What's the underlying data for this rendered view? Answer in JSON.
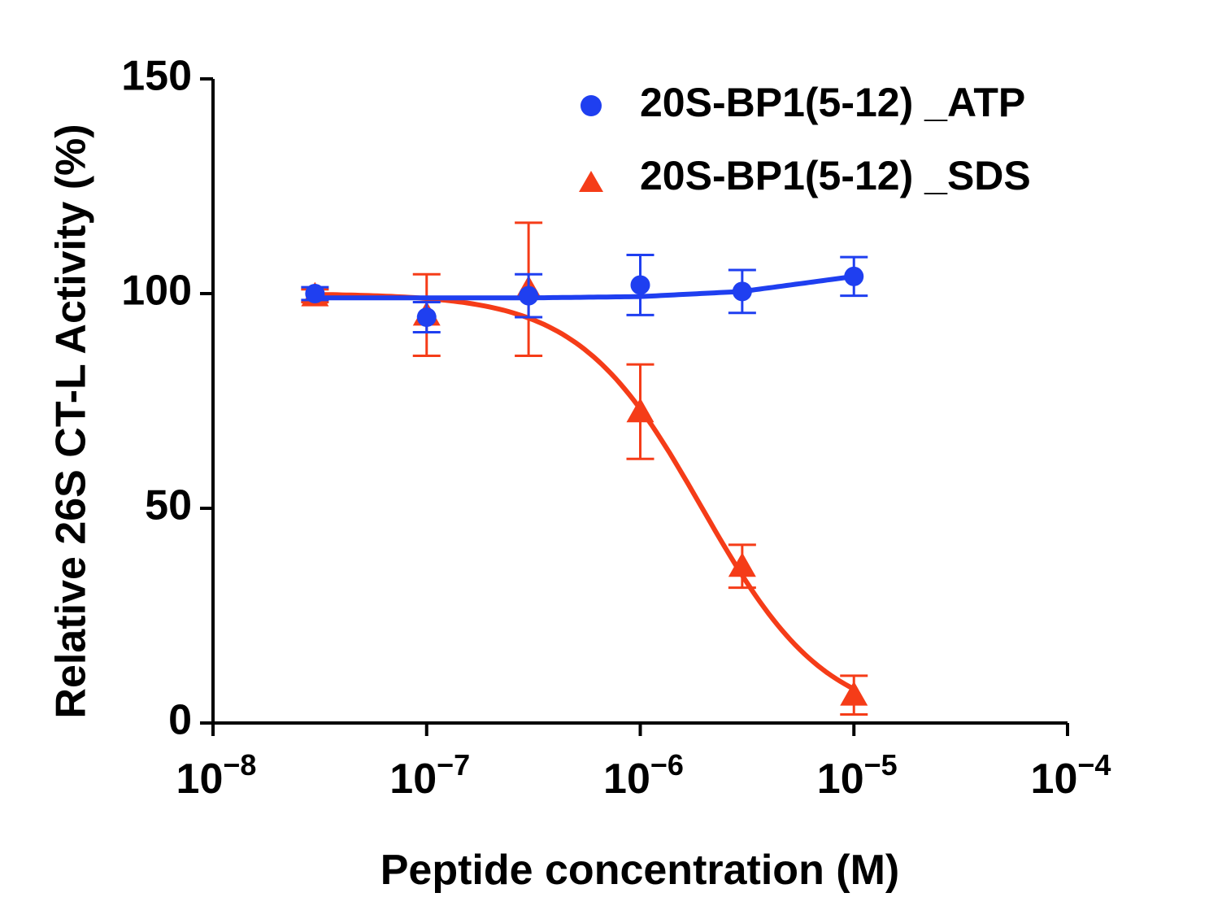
{
  "chart_data": {
    "type": "scatter",
    "xscale": "log",
    "title": "",
    "xlabel": "Peptide concentration (M)",
    "ylabel": "Relative 26S CT-L Activity (%)",
    "xlim": [
      1e-08,
      0.0001
    ],
    "ylim": [
      0,
      150
    ],
    "x_ticks": [
      {
        "value": 1e-08,
        "base": "10",
        "exp": "−8"
      },
      {
        "value": 1e-07,
        "base": "10",
        "exp": "−7"
      },
      {
        "value": 1e-06,
        "base": "10",
        "exp": "−6"
      },
      {
        "value": 1e-05,
        "base": "10",
        "exp": "−5"
      },
      {
        "value": 0.0001,
        "base": "10",
        "exp": "−4"
      }
    ],
    "y_ticks": [
      {
        "value": 0,
        "label": "0"
      },
      {
        "value": 50,
        "label": "50"
      },
      {
        "value": 100,
        "label": "100"
      },
      {
        "value": 150,
        "label": "150"
      }
    ],
    "legend_position": "top-right",
    "series": [
      {
        "name": "20S-BP1(5-12) _ATP",
        "marker": "circle",
        "color": "#1f3ff0",
        "x": [
          3e-08,
          1e-07,
          3e-07,
          1e-06,
          3e-06,
          1e-05
        ],
        "y": [
          100,
          94.5,
          99.5,
          102,
          100.5,
          104
        ],
        "err": [
          1.5,
          3.5,
          5,
          7,
          5,
          4.5
        ],
        "fit": {
          "model": "constant-with-rise",
          "y": [
            99,
            99,
            99,
            99.3,
            100.5,
            104
          ]
        }
      },
      {
        "name": "20S-BP1(5-12) _SDS",
        "marker": "triangle",
        "color": "#f53c18",
        "x": [
          3e-08,
          1e-07,
          3e-07,
          1e-06,
          3e-06,
          1e-05
        ],
        "y": [
          99.5,
          95,
          101,
          72.5,
          36.5,
          6.5
        ],
        "err": [
          1.5,
          9.5,
          15.5,
          11,
          5,
          4.5
        ],
        "fit": {
          "model": "four-parameter logistic",
          "top": 100,
          "bottom": 0,
          "ic50": 1.95e-06,
          "hill": 1.5
        }
      }
    ]
  }
}
